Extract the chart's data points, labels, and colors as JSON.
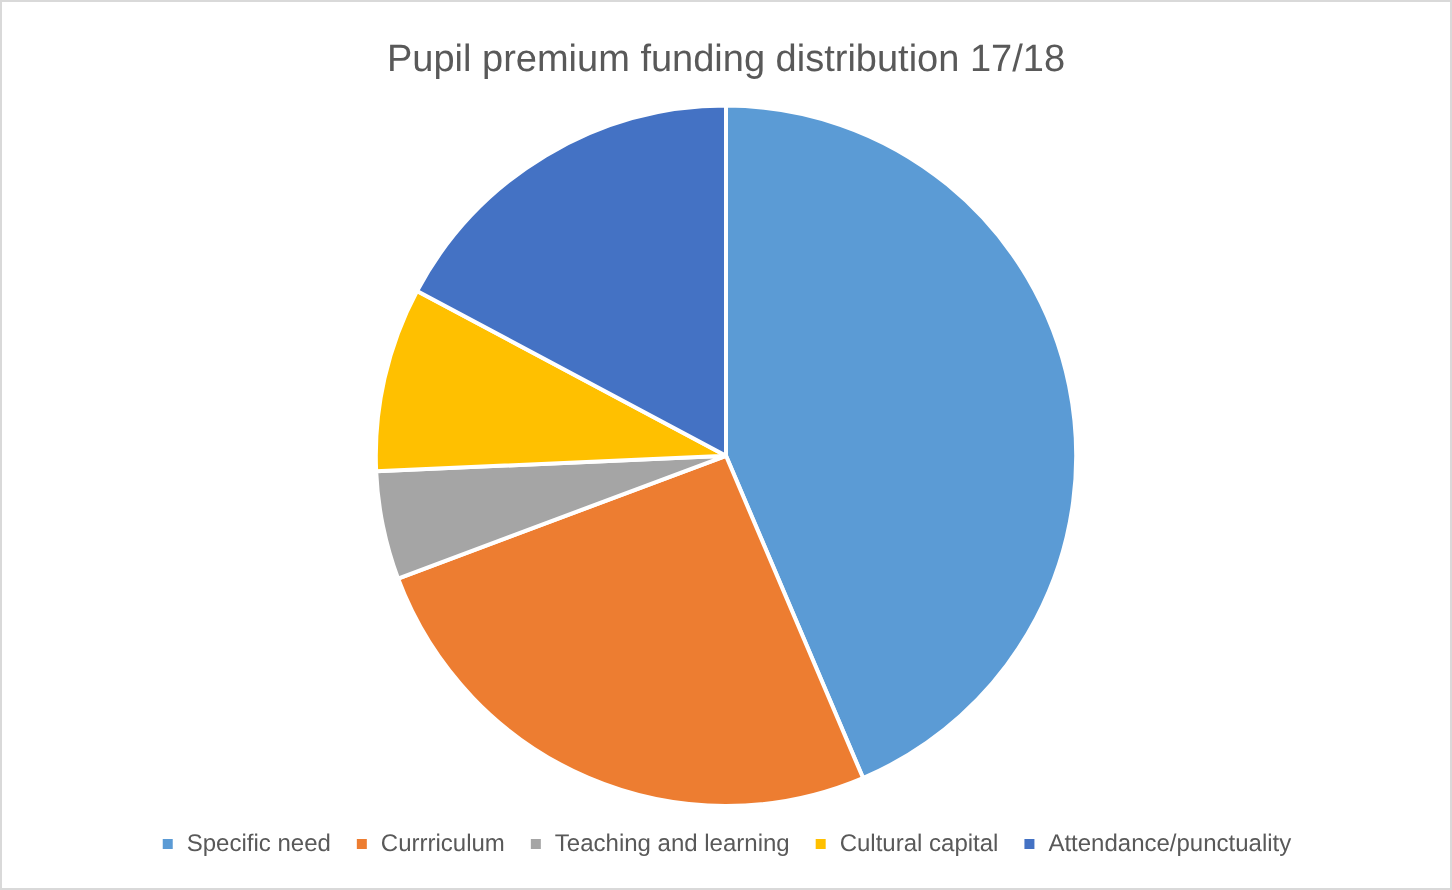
{
  "chart_data": {
    "type": "pie",
    "title": "Pupil premium funding distribution 17/18",
    "categories": [
      "Specific need",
      "Currriculum",
      "Teaching and learning",
      "Cultural capital",
      "Attendance/punctuality"
    ],
    "values": [
      43.6,
      25.7,
      5.0,
      8.5,
      17.2
    ],
    "colors": [
      "#5b9bd5",
      "#ed7d31",
      "#a5a5a5",
      "#ffc000",
      "#4472c4"
    ],
    "legend": "bottom"
  }
}
